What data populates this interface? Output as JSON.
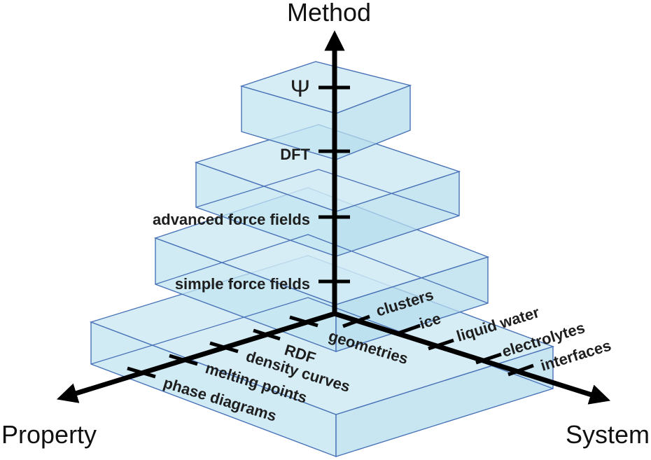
{
  "axes": {
    "method": {
      "title": "Method",
      "ticks": [
        "Ψ",
        "DFT",
        "advanced force fields",
        "simple force fields"
      ]
    },
    "property": {
      "title": "Property",
      "ticks": [
        "RDF",
        "density curves",
        "melting points",
        "phase diagrams"
      ]
    },
    "system": {
      "title": "System",
      "ticks": [
        "clusters",
        "ice",
        "geometries",
        "liquid water",
        "electrolytes",
        "interfaces"
      ]
    }
  },
  "colors": {
    "fill": "#cfeaf5",
    "edge": "#4a73b8",
    "axis": "#000000"
  }
}
